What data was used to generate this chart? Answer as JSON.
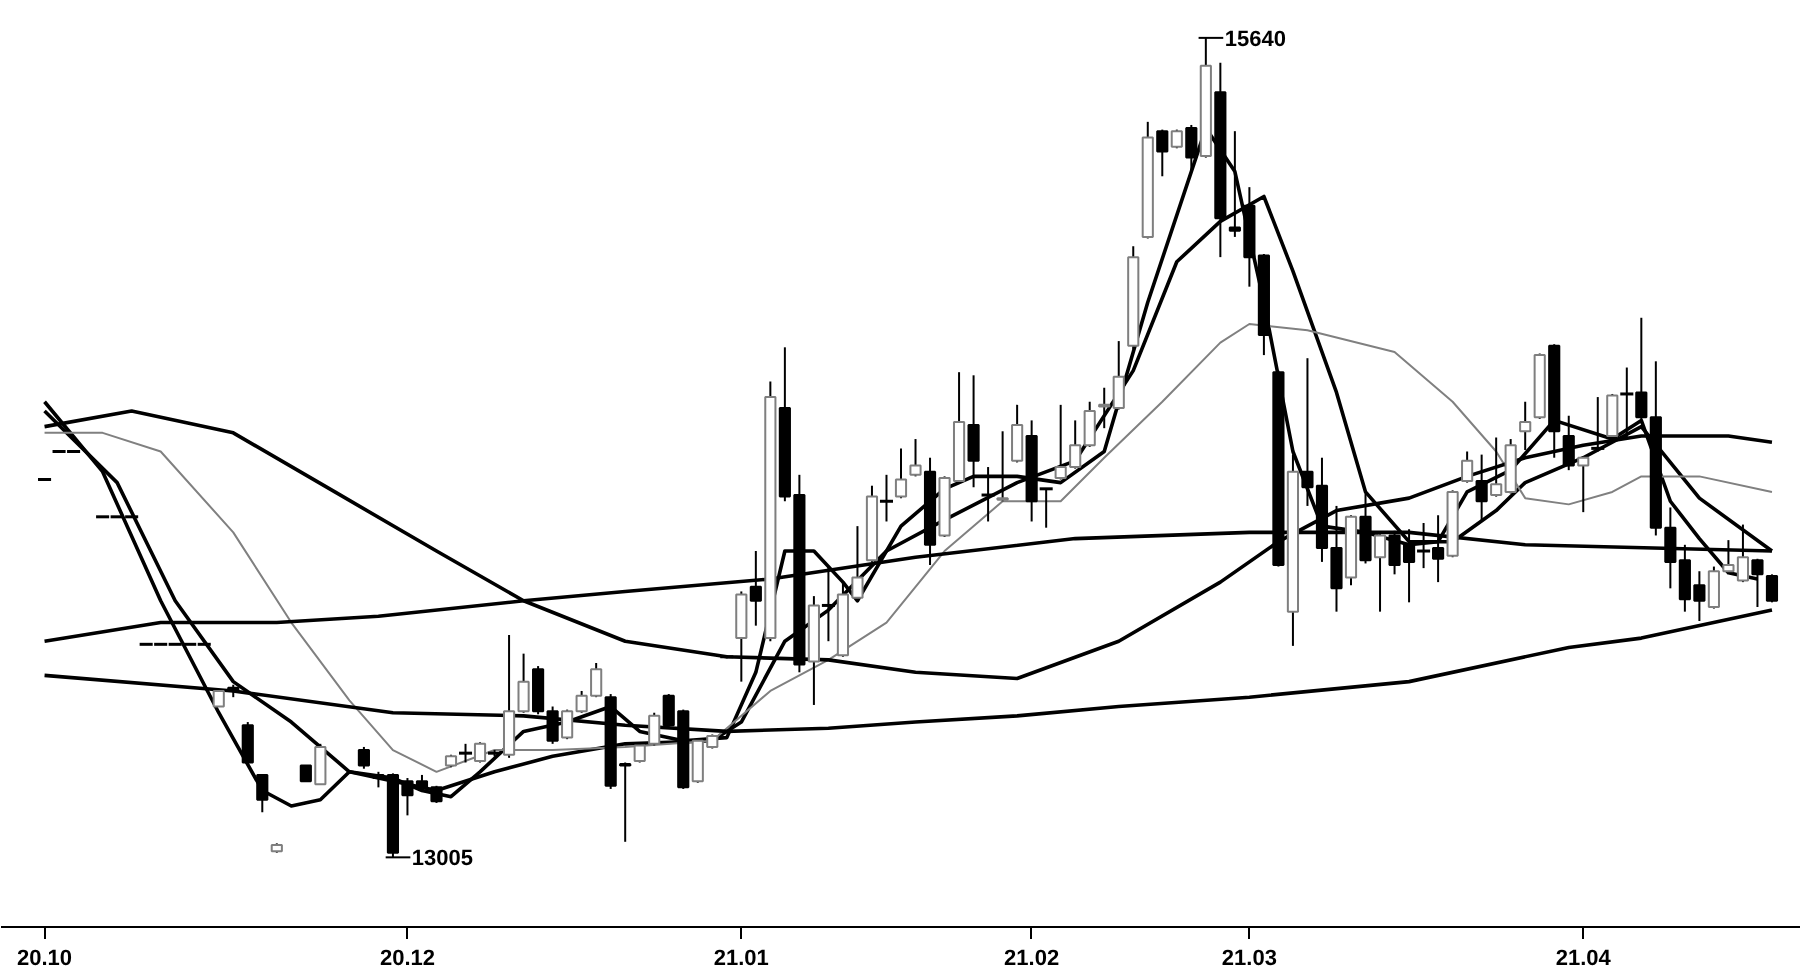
{
  "chart_data": {
    "type": "candlestick",
    "categories": [
      "20.10",
      null,
      null,
      null,
      null,
      null,
      null,
      null,
      null,
      null,
      null,
      null,
      null,
      null,
      null,
      null,
      null,
      null,
      null,
      null,
      null,
      null,
      null,
      null,
      null,
      "20.12",
      null,
      null,
      null,
      null,
      null,
      null,
      null,
      null,
      null,
      null,
      null,
      null,
      null,
      null,
      null,
      null,
      null,
      null,
      null,
      null,
      null,
      null,
      "21.01",
      null,
      null,
      null,
      null,
      null,
      null,
      null,
      null,
      null,
      null,
      null,
      null,
      null,
      null,
      null,
      null,
      null,
      null,
      null,
      "21.02",
      null,
      null,
      null,
      null,
      null,
      null,
      null,
      null,
      null,
      null,
      null,
      null,
      null,
      null,
      "21.03",
      null,
      null,
      null,
      null,
      null,
      null,
      null,
      null,
      null,
      null,
      null,
      null,
      null,
      null,
      null,
      null,
      null,
      null,
      null,
      null,
      null,
      null,
      "21.04",
      null,
      null,
      null,
      null,
      null,
      null,
      null,
      null,
      null,
      null,
      null,
      null,
      null
    ],
    "ohlc": [
      [
        14220,
        14220,
        14220,
        14220
      ],
      [
        14310,
        14310,
        14310,
        14310
      ],
      [
        14310,
        14310,
        14310,
        14310
      ],
      null,
      [
        14100,
        14100,
        14100,
        14100
      ],
      [
        14100,
        14100,
        14100,
        14100
      ],
      [
        14100,
        14100,
        14100,
        14100
      ],
      [
        13690,
        13690,
        13690,
        13690
      ],
      [
        13690,
        13690,
        13690,
        13690
      ],
      [
        13690,
        13690,
        13690,
        13690
      ],
      [
        13690,
        13690,
        13690,
        13690
      ],
      [
        13690,
        13690,
        13690,
        13690
      ],
      [
        13490,
        13540,
        13490,
        13540
      ],
      [
        13550,
        13560,
        13520,
        13540
      ],
      [
        13430,
        13440,
        13310,
        13310
      ],
      [
        13270,
        13270,
        13150,
        13190
      ],
      [
        13025,
        13050,
        13020,
        13045
      ],
      null,
      [
        13300,
        13300,
        13250,
        13250
      ],
      [
        13240,
        13370,
        13240,
        13360
      ],
      null,
      null,
      [
        13350,
        13360,
        13290,
        13300
      ],
      [
        13270,
        13280,
        13230,
        13260
      ],
      [
        13270,
        13275,
        13005,
        13020
      ],
      [
        13250,
        13260,
        13140,
        13205
      ],
      [
        13250,
        13270,
        13215,
        13230
      ],
      [
        13230,
        13235,
        13180,
        13185
      ],
      [
        13300,
        13335,
        13295,
        13330
      ],
      [
        13340,
        13370,
        13310,
        13340
      ],
      [
        13315,
        13375,
        13310,
        13370
      ],
      [
        13340,
        13350,
        13330,
        13340
      ],
      [
        13335,
        13720,
        13325,
        13475
      ],
      [
        13475,
        13660,
        13470,
        13570
      ],
      [
        13610,
        13620,
        13465,
        13475
      ],
      [
        13475,
        13490,
        13370,
        13380
      ],
      [
        13390,
        13480,
        13385,
        13475
      ],
      [
        13475,
        13540,
        13470,
        13525
      ],
      [
        13525,
        13630,
        13520,
        13610
      ],
      [
        13520,
        13530,
        13225,
        13235
      ],
      [
        13305,
        13310,
        13055,
        13300
      ],
      [
        13315,
        13370,
        13310,
        13365
      ],
      [
        13370,
        13470,
        13365,
        13460
      ],
      [
        13525,
        13530,
        13425,
        13430
      ],
      [
        13475,
        13480,
        13225,
        13230
      ],
      [
        13250,
        13385,
        13245,
        13380
      ],
      [
        13360,
        13400,
        13355,
        13395
      ],
      [
        13650,
        13655,
        13645,
        13650
      ],
      [
        13710,
        13860,
        13570,
        13850
      ],
      [
        13875,
        13990,
        13750,
        13830
      ],
      [
        13710,
        14535,
        13700,
        14485
      ],
      [
        14450,
        14645,
        14150,
        14165
      ],
      [
        14170,
        14235,
        13600,
        13625
      ],
      [
        13635,
        13845,
        13495,
        13815
      ],
      [
        13815,
        13940,
        13700,
        13815
      ],
      [
        13655,
        13890,
        13650,
        13850
      ],
      [
        13840,
        14070,
        13835,
        13905
      ],
      [
        13960,
        14200,
        13955,
        14165
      ],
      [
        14150,
        14235,
        14085,
        14150
      ],
      [
        14165,
        14320,
        14160,
        14220
      ],
      [
        14235,
        14350,
        14230,
        14265
      ],
      [
        14245,
        14290,
        13945,
        14010
      ],
      [
        14040,
        14230,
        14035,
        14225
      ],
      [
        14215,
        14565,
        14210,
        14405
      ],
      [
        14395,
        14555,
        14195,
        14280
      ],
      [
        14170,
        14260,
        14085,
        14170
      ],
      [
        14155,
        14375,
        14150,
        14160
      ],
      [
        14280,
        14460,
        14275,
        14395
      ],
      [
        14360,
        14410,
        14085,
        14150
      ],
      [
        14190,
        14190,
        14065,
        14190
      ],
      [
        14225,
        14460,
        14220,
        14260
      ],
      [
        14260,
        14410,
        14255,
        14330
      ],
      [
        14330,
        14470,
        14325,
        14440
      ],
      [
        14455,
        14515,
        14385,
        14460
      ],
      [
        14450,
        14665,
        14445,
        14550
      ],
      [
        14650,
        14970,
        14640,
        14935
      ],
      [
        15000,
        15370,
        14995,
        15320
      ],
      [
        15340,
        15345,
        15195,
        15275
      ],
      [
        15290,
        15345,
        15285,
        15340
      ],
      [
        15350,
        15360,
        15210,
        15255
      ],
      [
        15260,
        15640,
        15255,
        15550
      ],
      [
        15465,
        15560,
        14935,
        15060
      ],
      [
        15030,
        15340,
        15000,
        15020
      ],
      [
        15100,
        15160,
        14840,
        14935
      ],
      [
        14940,
        14945,
        14620,
        14685
      ],
      [
        14565,
        14570,
        13940,
        13945
      ],
      [
        13795,
        14300,
        13685,
        14245
      ],
      [
        14245,
        14610,
        14135,
        14195
      ],
      [
        14200,
        14290,
        13955,
        14000
      ],
      [
        14000,
        14135,
        13795,
        13870
      ],
      [
        13905,
        14105,
        13880,
        14100
      ],
      [
        14100,
        14180,
        13950,
        13960
      ],
      [
        13970,
        14045,
        13795,
        14040
      ],
      [
        14040,
        14055,
        13915,
        13945
      ],
      [
        14010,
        14060,
        13825,
        13955
      ],
      [
        13990,
        14080,
        13935,
        13990
      ],
      [
        14000,
        14105,
        13890,
        13965
      ],
      [
        13975,
        14185,
        13970,
        14180
      ],
      [
        14215,
        14310,
        14210,
        14280
      ],
      [
        14215,
        14300,
        14085,
        14150
      ],
      [
        14170,
        14355,
        14165,
        14205
      ],
      [
        14180,
        14350,
        14175,
        14330
      ],
      [
        14375,
        14470,
        14315,
        14405
      ],
      [
        14420,
        14625,
        14415,
        14620
      ],
      [
        14650,
        14655,
        14290,
        14375
      ],
      [
        14360,
        14425,
        14250,
        14265
      ],
      [
        14265,
        14295,
        14115,
        14290
      ],
      [
        14320,
        14485,
        14310,
        14320
      ],
      [
        14360,
        14495,
        14355,
        14490
      ],
      [
        14495,
        14580,
        14355,
        14495
      ],
      [
        14500,
        14740,
        14410,
        14420
      ],
      [
        14420,
        14600,
        14040,
        14065
      ],
      [
        14065,
        14130,
        13870,
        13955
      ],
      [
        13960,
        14010,
        13795,
        13835
      ],
      [
        13880,
        13925,
        13765,
        13830
      ],
      [
        13810,
        13940,
        13805,
        13925
      ],
      [
        13925,
        14025,
        13920,
        13945
      ],
      [
        13895,
        14075,
        13890,
        13970
      ],
      [
        13960,
        13965,
        13810,
        13915
      ],
      [
        13910,
        13915,
        13825,
        13830
      ]
    ],
    "series": [
      {
        "type": "line",
        "color": "#000000",
        "values": [
          14470,
          null,
          null,
          null,
          14245,
          null,
          null,
          null,
          13830,
          null,
          null,
          null,
          13470,
          null,
          null,
          13220,
          null,
          13170,
          null,
          13190,
          null,
          13280,
          null,
          null,
          13260,
          null,
          13220,
          null,
          13200,
          null,
          13280,
          null,
          null,
          13410,
          null,
          null,
          13440,
          null,
          null,
          13490,
          null,
          13410,
          null,
          null,
          13380,
          null,
          null,
          13390,
          null,
          13600,
          null,
          13990,
          null,
          13990,
          null,
          13890,
          13830,
          null,
          null,
          14070,
          null,
          null,
          14190,
          null,
          14230,
          null,
          null,
          14230,
          null,
          null,
          14210,
          null,
          null,
          14310,
          null,
          null,
          14790,
          null,
          null,
          15210,
          15350,
          null,
          15210,
          null,
          14790,
          null,
          14310,
          null,
          14070,
          null,
          null,
          14050,
          null,
          null,
          14010,
          null,
          14020,
          null,
          14180,
          null,
          null,
          14250,
          null,
          null,
          14410,
          null,
          null,
          null,
          14350,
          null,
          14410,
          null,
          14150,
          null,
          14030,
          null,
          13920,
          null,
          13900,
          null
        ]
      },
      {
        "type": "line",
        "color": "#000000",
        "values": [
          14440,
          null,
          null,
          null,
          null,
          14210,
          null,
          null,
          null,
          13830,
          null,
          null,
          null,
          13570,
          null,
          null,
          null,
          13440,
          null,
          null,
          null,
          13280,
          null,
          null,
          null,
          null,
          null,
          13220,
          null,
          null,
          null,
          13280,
          null,
          null,
          null,
          13330,
          null,
          null,
          null,
          null,
          13370,
          null,
          null,
          null,
          null,
          null,
          13380,
          null,
          13440,
          null,
          null,
          13700,
          null,
          null,
          13800,
          null,
          null,
          null,
          13990,
          null,
          null,
          null,
          14090,
          null,
          null,
          null,
          null,
          14210,
          null,
          null,
          null,
          14280,
          null,
          null,
          null,
          14570,
          null,
          null,
          14920,
          null,
          null,
          15050,
          null,
          null,
          15130,
          null,
          14890,
          null,
          null,
          14500,
          null,
          14180,
          null,
          null,
          14020,
          null,
          null,
          14020,
          null,
          null,
          14120,
          null,
          14210,
          null,
          null,
          null,
          14290,
          null,
          null,
          null,
          14390,
          null,
          null,
          null,
          14160,
          null,
          null,
          null,
          null,
          13990
        ]
      },
      {
        "type": "line",
        "color": "#808080",
        "values": [
          14370,
          null,
          null,
          null,
          14370,
          null,
          null,
          null,
          14310,
          null,
          null,
          null,
          null,
          14050,
          null,
          null,
          null,
          13760,
          null,
          null,
          null,
          13510,
          null,
          null,
          13350,
          null,
          null,
          13280,
          null,
          null,
          null,
          13350,
          null,
          null,
          null,
          13350,
          null,
          null,
          null,
          null,
          13360,
          null,
          null,
          null,
          null,
          null,
          13380,
          null,
          null,
          null,
          13540,
          null,
          null,
          null,
          13640,
          null,
          null,
          null,
          13760,
          null,
          null,
          null,
          13990,
          null,
          null,
          null,
          14150,
          null,
          null,
          null,
          14150,
          null,
          null,
          14290,
          null,
          null,
          null,
          14470,
          null,
          null,
          null,
          14660,
          null,
          14720,
          null,
          null,
          null,
          14700,
          null,
          null,
          null,
          null,
          null,
          14630,
          null,
          null,
          null,
          14470,
          null,
          null,
          14310,
          null,
          14160,
          null,
          null,
          14140,
          null,
          null,
          14180,
          null,
          14230,
          null,
          null,
          null,
          14230,
          null,
          null,
          null,
          null,
          14180
        ]
      },
      {
        "type": "line",
        "color": "#000000",
        "values": [
          14390,
          null,
          null,
          null,
          null,
          null,
          14440,
          null,
          null,
          null,
          null,
          null,
          null,
          14370,
          null,
          null,
          null,
          null,
          null,
          null,
          14180,
          null,
          null,
          null,
          null,
          null,
          null,
          13990,
          null,
          null,
          null,
          null,
          null,
          13830,
          null,
          null,
          null,
          null,
          null,
          null,
          13700,
          null,
          null,
          null,
          null,
          null,
          null,
          13650,
          null,
          null,
          null,
          null,
          null,
          null,
          13640,
          null,
          null,
          null,
          null,
          null,
          13600,
          null,
          null,
          null,
          null,
          null,
          null,
          13580,
          null,
          null,
          null,
          null,
          null,
          null,
          13700,
          null,
          null,
          null,
          null,
          null,
          null,
          13890,
          null,
          null,
          null,
          14020,
          null,
          null,
          null,
          14120,
          null,
          null,
          null,
          null,
          14160,
          null,
          null,
          null,
          14230,
          null,
          null,
          null,
          14290,
          null,
          null,
          null,
          14330,
          null,
          null,
          null,
          14360,
          null,
          null,
          null,
          null,
          null,
          14360,
          null,
          null,
          14340
        ]
      },
      {
        "type": "line",
        "color": "#000000",
        "values": [
          13700,
          null,
          null,
          null,
          null,
          null,
          null,
          null,
          13760,
          null,
          null,
          null,
          null,
          null,
          null,
          null,
          13760,
          null,
          null,
          null,
          null,
          null,
          null,
          13780,
          null,
          null,
          null,
          null,
          null,
          null,
          null,
          null,
          null,
          13830,
          null,
          null,
          null,
          null,
          null,
          null,
          13860,
          null,
          null,
          null,
          null,
          null,
          null,
          null,
          null,
          null,
          13900,
          null,
          null,
          null,
          null,
          null,
          null,
          null,
          null,
          null,
          13970,
          null,
          null,
          null,
          null,
          null,
          null,
          null,
          null,
          null,
          null,
          14030,
          null,
          null,
          null,
          null,
          null,
          null,
          null,
          null,
          null,
          null,
          null,
          14050,
          null,
          null,
          null,
          null,
          null,
          null,
          null,
          null,
          null,
          null,
          14050,
          null,
          null,
          null,
          null,
          null,
          null,
          null,
          14010,
          null,
          null,
          null,
          null,
          null,
          null,
          null,
          null,
          null,
          null,
          null,
          null,
          null,
          null,
          null,
          null,
          13990
        ]
      },
      {
        "type": "line",
        "color": "#000000",
        "values": [
          13590,
          null,
          null,
          null,
          null,
          null,
          null,
          null,
          null,
          null,
          null,
          null,
          null,
          13540,
          null,
          null,
          null,
          null,
          null,
          null,
          null,
          null,
          null,
          null,
          13470,
          null,
          null,
          null,
          null,
          null,
          null,
          null,
          null,
          13460,
          null,
          null,
          null,
          null,
          null,
          null,
          13430,
          null,
          null,
          null,
          null,
          null,
          null,
          13410,
          null,
          null,
          null,
          null,
          null,
          null,
          13420,
          null,
          null,
          null,
          null,
          null,
          13440,
          null,
          null,
          null,
          null,
          null,
          null,
          13460,
          null,
          null,
          null,
          null,
          null,
          null,
          13490,
          null,
          null,
          null,
          null,
          null,
          null,
          null,
          null,
          13520,
          null,
          null,
          null,
          null,
          null,
          null,
          null,
          null,
          null,
          null,
          13570,
          null,
          null,
          null,
          null,
          null,
          null,
          null,
          null,
          null,
          null,
          13680,
          null,
          null,
          null,
          null,
          13710,
          null,
          null,
          null,
          null,
          null,
          null,
          null,
          null,
          13800
        ]
      }
    ],
    "annotations": [
      "15640",
      "13005"
    ]
  }
}
